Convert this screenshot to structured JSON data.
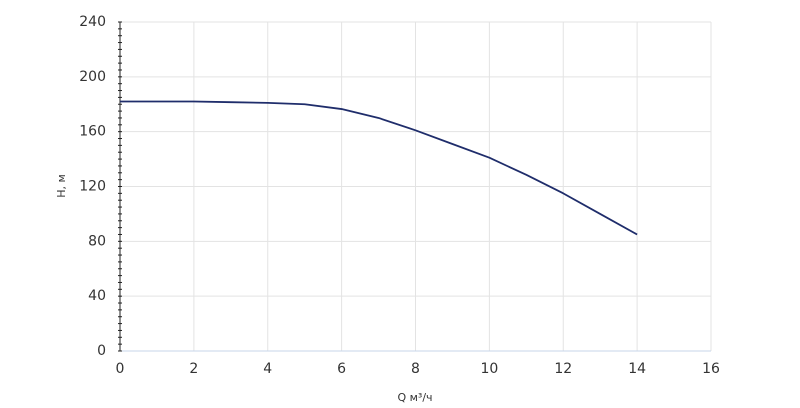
{
  "chart_data": {
    "type": "line",
    "x_label": "Q м³/ч",
    "y_label": "H, м",
    "x": [
      0,
      1,
      2,
      3,
      4,
      5,
      6,
      7,
      8,
      9,
      10,
      11,
      12,
      13,
      14
    ],
    "series": [
      {
        "name": "H",
        "color": "#1f2d6b",
        "values": [
          182,
          182,
          182,
          181.5,
          181,
          180,
          176.5,
          170,
          161,
          151,
          141,
          128.5,
          115,
          100,
          85
        ]
      }
    ],
    "xlim": [
      0,
      16
    ],
    "xticks": [
      0,
      2,
      4,
      6,
      8,
      10,
      12,
      14,
      16
    ],
    "ylim": [
      0,
      240
    ],
    "yticks": [
      0,
      40,
      80,
      120,
      160,
      200,
      240
    ],
    "grid": true
  }
}
